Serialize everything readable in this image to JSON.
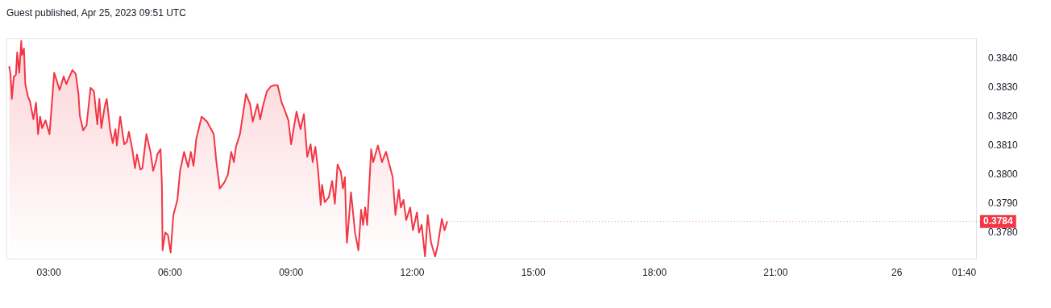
{
  "chart_data": {
    "type": "area",
    "title": "Guest published, Apr 25, 2023 09:51 UTC",
    "x": [
      "2023-04-25T02:01",
      "2023-04-25T02:03",
      "2023-04-25T02:05",
      "2023-04-25T02:08",
      "2023-04-25T02:11",
      "2023-04-25T02:13",
      "2023-04-25T02:16",
      "2023-04-25T02:19",
      "2023-04-25T02:20",
      "2023-04-25T02:23",
      "2023-04-25T02:25",
      "2023-04-25T02:29",
      "2023-04-25T02:32",
      "2023-04-25T02:37",
      "2023-04-25T02:41",
      "2023-04-25T02:44",
      "2023-04-25T02:47",
      "2023-04-25T02:50",
      "2023-04-25T02:55",
      "2023-04-25T03:01",
      "2023-04-25T03:08",
      "2023-04-25T03:16",
      "2023-04-25T03:22",
      "2023-04-25T03:26",
      "2023-04-25T03:30",
      "2023-04-25T03:35",
      "2023-04-25T03:40",
      "2023-04-25T03:44",
      "2023-04-25T03:46",
      "2023-04-25T03:51",
      "2023-04-25T03:56",
      "2023-04-25T04:02",
      "2023-04-25T04:07",
      "2023-04-25T04:12",
      "2023-04-25T04:15",
      "2023-04-25T04:18",
      "2023-04-25T04:23",
      "2023-04-25T04:26",
      "2023-04-25T04:31",
      "2023-04-25T04:35",
      "2023-04-25T04:39",
      "2023-04-25T04:41",
      "2023-04-25T04:46",
      "2023-04-25T04:52",
      "2023-04-25T04:56",
      "2023-04-25T04:59",
      "2023-04-25T05:04",
      "2023-04-25T05:08",
      "2023-04-25T05:11",
      "2023-04-25T05:16",
      "2023-04-25T05:19",
      "2023-04-25T05:25",
      "2023-04-25T05:31",
      "2023-04-25T05:35",
      "2023-04-25T05:40",
      "2023-04-25T05:41",
      "2023-04-25T05:46",
      "2023-04-25T05:48",
      "2023-04-25T05:49",
      "2023-04-25T05:53",
      "2023-04-25T05:57",
      "2023-04-25T06:01",
      "2023-04-25T06:05",
      "2023-04-25T06:11",
      "2023-04-25T06:15",
      "2023-04-25T06:21",
      "2023-04-25T06:27",
      "2023-04-25T06:31",
      "2023-04-25T06:35",
      "2023-04-25T06:39",
      "2023-04-25T06:47",
      "2023-04-25T06:55",
      "2023-04-25T07:05",
      "2023-04-25T07:09",
      "2023-04-25T07:14",
      "2023-04-25T07:21",
      "2023-04-25T07:26",
      "2023-04-25T07:31",
      "2023-04-25T07:35",
      "2023-04-25T07:38",
      "2023-04-25T07:44",
      "2023-04-25T07:53",
      "2023-04-25T07:59",
      "2023-04-25T08:03",
      "2023-04-25T08:10",
      "2023-04-25T08:14",
      "2023-04-25T08:18",
      "2023-04-25T08:24",
      "2023-04-25T08:30",
      "2023-04-25T08:35",
      "2023-04-25T08:40",
      "2023-04-25T08:46",
      "2023-04-25T08:50",
      "2023-04-25T08:56",
      "2023-04-25T09:00",
      "2023-04-25T09:08",
      "2023-04-25T09:14",
      "2023-04-25T09:19",
      "2023-04-25T09:24",
      "2023-04-25T09:29",
      "2023-04-25T09:32",
      "2023-04-25T09:36",
      "2023-04-25T09:40",
      "2023-04-25T09:44",
      "2023-04-25T09:46",
      "2023-04-25T09:50",
      "2023-04-25T09:56",
      "2023-04-25T10:01",
      "2023-04-25T10:05",
      "2023-04-25T10:09",
      "2023-04-25T10:14",
      "2023-04-25T10:17",
      "2023-04-25T10:20",
      "2023-04-25T10:22",
      "2023-04-25T10:23",
      "2023-04-25T10:29",
      "2023-04-25T10:35",
      "2023-04-25T10:40",
      "2023-04-25T10:44",
      "2023-04-25T10:47",
      "2023-04-25T10:50",
      "2023-04-25T10:53",
      "2023-04-25T10:59",
      "2023-04-25T11:02",
      "2023-04-25T11:09",
      "2023-04-25T11:15",
      "2023-04-25T11:21",
      "2023-04-25T11:27",
      "2023-04-25T11:31",
      "2023-04-25T11:35",
      "2023-04-25T11:40",
      "2023-04-25T11:43",
      "2023-04-25T11:47",
      "2023-04-25T11:51",
      "2023-04-25T11:57",
      "2023-04-25T12:01",
      "2023-04-25T12:07",
      "2023-04-25T12:10",
      "2023-04-25T12:14",
      "2023-04-25T12:19",
      "2023-04-25T12:23",
      "2023-04-25T12:28",
      "2023-04-25T12:34",
      "2023-04-25T12:38",
      "2023-04-25T12:44",
      "2023-04-25T12:48",
      "2023-04-25T12:52"
    ],
    "series": [
      {
        "color": "#f23645",
        "values": [
          0.38373,
          0.38347,
          0.38261,
          0.38338,
          0.38343,
          0.38421,
          0.38351,
          0.3846,
          0.38412,
          0.38434,
          0.38312,
          0.38269,
          0.38252,
          0.38191,
          0.38248,
          0.3814,
          0.382,
          0.38161,
          0.38187,
          0.3814,
          0.38351,
          0.38291,
          0.38338,
          0.38312,
          0.38334,
          0.3836,
          0.38347,
          0.38278,
          0.38204,
          0.38153,
          0.3817,
          0.38299,
          0.38287,
          0.38174,
          0.38261,
          0.38161,
          0.38235,
          0.38261,
          0.38157,
          0.38109,
          0.38157,
          0.38101,
          0.382,
          0.38105,
          0.38114,
          0.38148,
          0.38088,
          0.38023,
          0.3807,
          0.38018,
          0.38023,
          0.3814,
          0.38079,
          0.38014,
          0.38053,
          0.3807,
          0.38088,
          0.37966,
          0.37741,
          0.37802,
          0.37793,
          0.37733,
          0.37862,
          0.37914,
          0.38014,
          0.38079,
          0.38027,
          0.38079,
          0.38031,
          0.38122,
          0.382,
          0.38183,
          0.3814,
          0.38044,
          0.37953,
          0.37975,
          0.38001,
          0.38079,
          0.38044,
          0.38096,
          0.3814,
          0.38278,
          0.38243,
          0.38183,
          0.38243,
          0.38191,
          0.38235,
          0.38287,
          0.38304,
          0.38308,
          0.38308,
          0.38248,
          0.38226,
          0.38187,
          0.38105,
          0.38217,
          0.38157,
          0.38209,
          0.38062,
          0.38105,
          0.38044,
          0.38096,
          0.38018,
          0.37897,
          0.37966,
          0.37906,
          0.37923,
          0.37979,
          0.37901,
          0.38036,
          0.3801,
          0.37953,
          0.37992,
          0.37819,
          0.37767,
          0.3794,
          0.37802,
          0.37741,
          0.3788,
          0.37828,
          0.37888,
          0.37828,
          0.38088,
          0.38044,
          0.38101,
          0.38044,
          0.38079,
          0.38027,
          0.37992,
          0.37862,
          0.37949,
          0.37888,
          0.37914,
          0.37845,
          0.37888,
          0.3781,
          0.37871,
          0.37802,
          0.37828,
          0.3772,
          0.37862,
          0.37767,
          0.3772,
          0.37759,
          0.37849,
          0.3781,
          0.3784
        ]
      }
    ],
    "xlim": [
      "2023-04-25T01:57",
      "2023-04-26T01:59"
    ],
    "xticks": [
      {
        "value": "2023-04-25T03:00",
        "label": "03:00"
      },
      {
        "value": "2023-04-25T06:00",
        "label": "06:00"
      },
      {
        "value": "2023-04-25T09:00",
        "label": "09:00"
      },
      {
        "value": "2023-04-25T12:00",
        "label": "12:00"
      },
      {
        "value": "2023-04-25T15:00",
        "label": "15:00"
      },
      {
        "value": "2023-04-25T18:00",
        "label": "18:00"
      },
      {
        "value": "2023-04-25T21:00",
        "label": "21:00"
      },
      {
        "value": "2023-04-26T00:00",
        "label": "26"
      },
      {
        "value": "2023-04-26T01:40",
        "label": "01:40"
      }
    ],
    "ylim": [
      0.3771,
      0.3847
    ],
    "yticks": [
      {
        "value": 0.378,
        "label": "0.3780"
      },
      {
        "value": 0.379,
        "label": "0.3790"
      },
      {
        "value": 0.38,
        "label": "0.3800"
      },
      {
        "value": 0.381,
        "label": "0.3810"
      },
      {
        "value": 0.382,
        "label": "0.3820"
      },
      {
        "value": 0.383,
        "label": "0.3830"
      },
      {
        "value": 0.384,
        "label": "0.3840"
      }
    ],
    "annotations": [
      {
        "text": "0.3784",
        "x": "2023-04-25T12:52",
        "y": 0.3784
      }
    ]
  }
}
